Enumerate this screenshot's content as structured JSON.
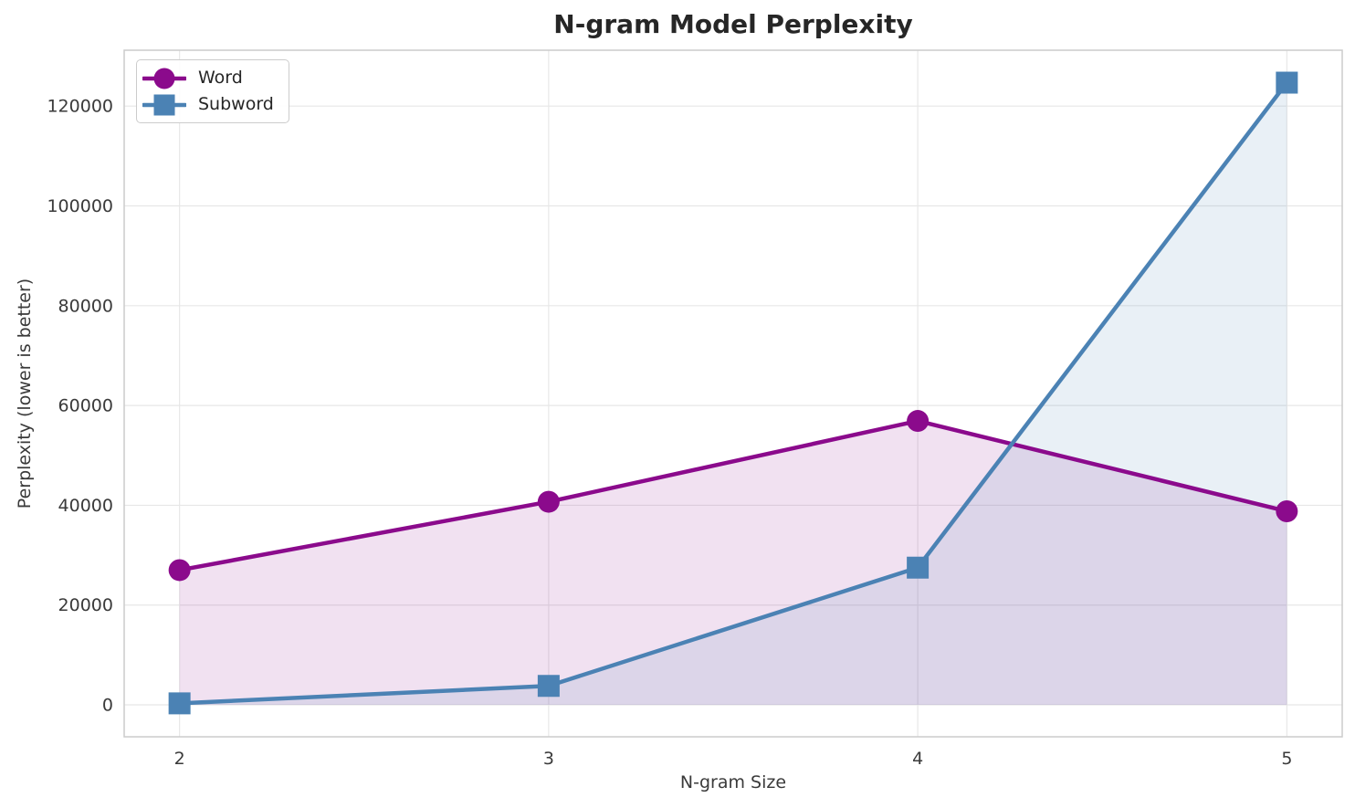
{
  "chart_data": {
    "type": "line",
    "title": "N-gram Model Perplexity",
    "xlabel": "N-gram Size",
    "ylabel": "Perplexity (lower is better)",
    "categories": [
      2,
      3,
      4,
      5
    ],
    "xtick_labels": [
      "2",
      "3",
      "4",
      "5"
    ],
    "ytick_values": [
      0,
      20000,
      40000,
      60000,
      80000,
      100000,
      120000
    ],
    "ytick_labels": [
      "0",
      "20000",
      "40000",
      "60000",
      "80000",
      "100000",
      "120000"
    ],
    "xlim": [
      1.85,
      5.15
    ],
    "ylim": [
      -6400,
      131200
    ],
    "grid": true,
    "fill_baseline": 0,
    "legend_position": "upper left",
    "series": [
      {
        "name": "Word",
        "color": "#8B0A8C",
        "marker": "circle",
        "fill_opacity": 0.12,
        "values": [
          27000,
          40700,
          56900,
          38800
        ]
      },
      {
        "name": "Subword",
        "color": "#4B82B4",
        "marker": "square",
        "fill_opacity": 0.12,
        "values": [
          300,
          3800,
          27500,
          124700
        ]
      }
    ],
    "colors": {
      "grid": "#E7E7E7",
      "spine": "#CCCCCC",
      "tick_text": "#3a3a3a",
      "title_text": "#262626"
    }
  }
}
